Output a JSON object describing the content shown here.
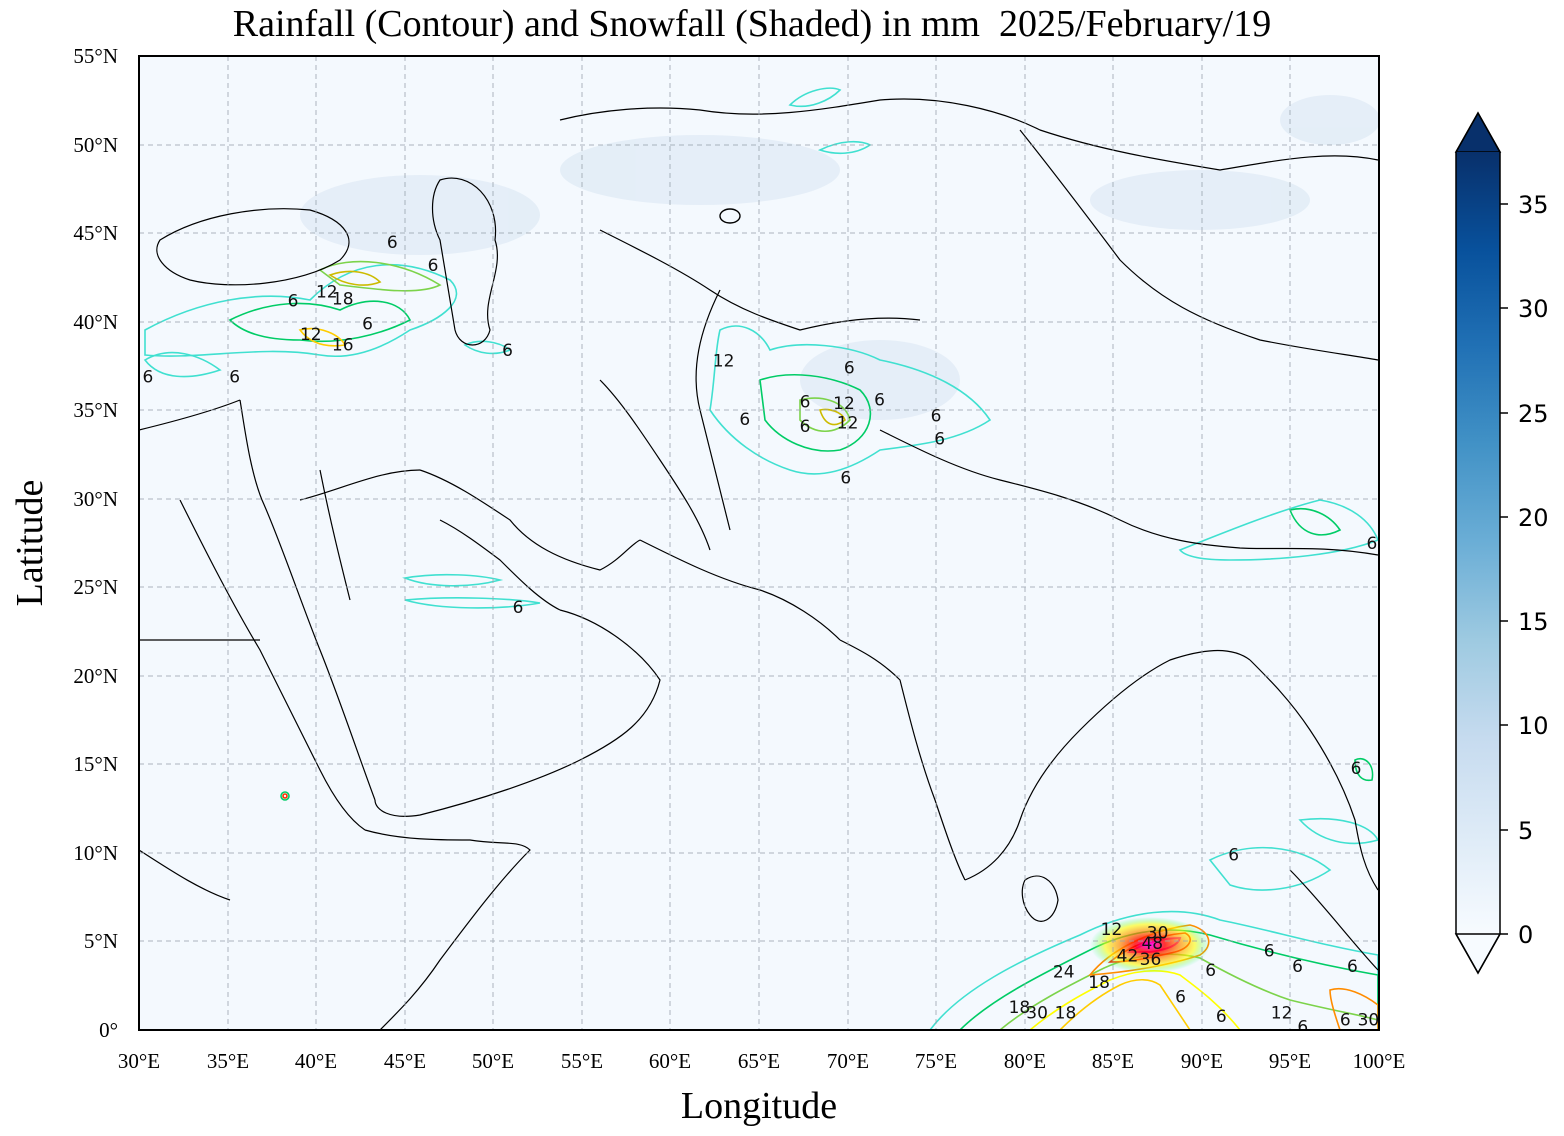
{
  "title": "Rainfall (Contour) and Snowfall (Shaded) in mm  2025/February/19",
  "map": {
    "extent": {
      "lon": [
        30,
        100
      ],
      "lat": [
        0,
        55
      ]
    },
    "grid": true,
    "x_ticks": [
      "30°E",
      "35°E",
      "40°E",
      "45°E",
      "50°E",
      "55°E",
      "60°E",
      "65°E",
      "70°E",
      "75°E",
      "80°E",
      "85°E",
      "90°E",
      "95°E",
      "100°E"
    ],
    "y_ticks": [
      "0°",
      "5°N",
      "10°N",
      "15°N",
      "20°N",
      "25°N",
      "30°N",
      "35°N",
      "40°N",
      "45°N",
      "50°N",
      "55°N"
    ],
    "xlabel": "Longitude",
    "ylabel": "Latitude"
  },
  "colorbar": {
    "ticks": [
      "0",
      "5",
      "10",
      "15",
      "20",
      "25",
      "30",
      "35"
    ],
    "range": [
      0,
      37.5
    ],
    "extend": "both",
    "colormap": "Blues"
  },
  "contour_labels": [
    {
      "text": "6",
      "lon": 44.3,
      "lat": 44.5
    },
    {
      "text": "6",
      "lon": 46.6,
      "lat": 43.2
    },
    {
      "text": "12",
      "lon": 40.6,
      "lat": 41.7
    },
    {
      "text": "18",
      "lon": 41.5,
      "lat": 41.3
    },
    {
      "text": "6",
      "lon": 38.7,
      "lat": 41.2
    },
    {
      "text": "6",
      "lon": 42.9,
      "lat": 39.9
    },
    {
      "text": "12",
      "lon": 39.7,
      "lat": 39.3
    },
    {
      "text": "16",
      "lon": 41.5,
      "lat": 38.7
    },
    {
      "text": "6",
      "lon": 50.8,
      "lat": 38.4
    },
    {
      "text": "6",
      "lon": 30.5,
      "lat": 36.9
    },
    {
      "text": "6",
      "lon": 35.4,
      "lat": 36.9
    },
    {
      "text": "12",
      "lon": 63.0,
      "lat": 37.8
    },
    {
      "text": "6",
      "lon": 70.1,
      "lat": 37.4
    },
    {
      "text": "6",
      "lon": 67.6,
      "lat": 35.5
    },
    {
      "text": "12",
      "lon": 69.8,
      "lat": 35.4
    },
    {
      "text": "6",
      "lon": 71.8,
      "lat": 35.6
    },
    {
      "text": "6",
      "lon": 64.2,
      "lat": 34.5
    },
    {
      "text": "6",
      "lon": 67.6,
      "lat": 34.1
    },
    {
      "text": "12",
      "lon": 70.0,
      "lat": 34.3
    },
    {
      "text": "6",
      "lon": 75.0,
      "lat": 34.7
    },
    {
      "text": "6",
      "lon": 75.2,
      "lat": 33.4
    },
    {
      "text": "6",
      "lon": 69.9,
      "lat": 31.2
    },
    {
      "text": "6",
      "lon": 51.4,
      "lat": 23.9
    },
    {
      "text": "6",
      "lon": 99.6,
      "lat": 27.5
    },
    {
      "text": "6",
      "lon": 98.7,
      "lat": 14.8
    },
    {
      "text": "6",
      "lon": 91.8,
      "lat": 9.9
    },
    {
      "text": "12",
      "lon": 84.9,
      "lat": 5.7
    },
    {
      "text": "30",
      "lon": 87.5,
      "lat": 5.5
    },
    {
      "text": "48",
      "lon": 87.2,
      "lat": 4.9
    },
    {
      "text": "42",
      "lon": 85.8,
      "lat": 4.2
    },
    {
      "text": "36",
      "lon": 87.1,
      "lat": 4.0
    },
    {
      "text": "6",
      "lon": 93.8,
      "lat": 4.5
    },
    {
      "text": "6",
      "lon": 95.4,
      "lat": 3.6
    },
    {
      "text": "6",
      "lon": 90.5,
      "lat": 3.4
    },
    {
      "text": "6",
      "lon": 98.5,
      "lat": 3.6
    },
    {
      "text": "24",
      "lon": 82.2,
      "lat": 3.3
    },
    {
      "text": "18",
      "lon": 84.2,
      "lat": 2.7
    },
    {
      "text": "6",
      "lon": 88.8,
      "lat": 1.9
    },
    {
      "text": "18",
      "lon": 79.7,
      "lat": 1.3
    },
    {
      "text": "30",
      "lon": 80.7,
      "lat": 1.0
    },
    {
      "text": "18",
      "lon": 82.3,
      "lat": 1.0
    },
    {
      "text": "6",
      "lon": 91.1,
      "lat": 0.8
    },
    {
      "text": "12",
      "lon": 94.5,
      "lat": 1.0
    },
    {
      "text": "6",
      "lon": 95.7,
      "lat": 0.2
    },
    {
      "text": "6",
      "lon": 98.1,
      "lat": 0.6
    },
    {
      "text": "30",
      "lon": 99.4,
      "lat": 0.6
    }
  ]
}
